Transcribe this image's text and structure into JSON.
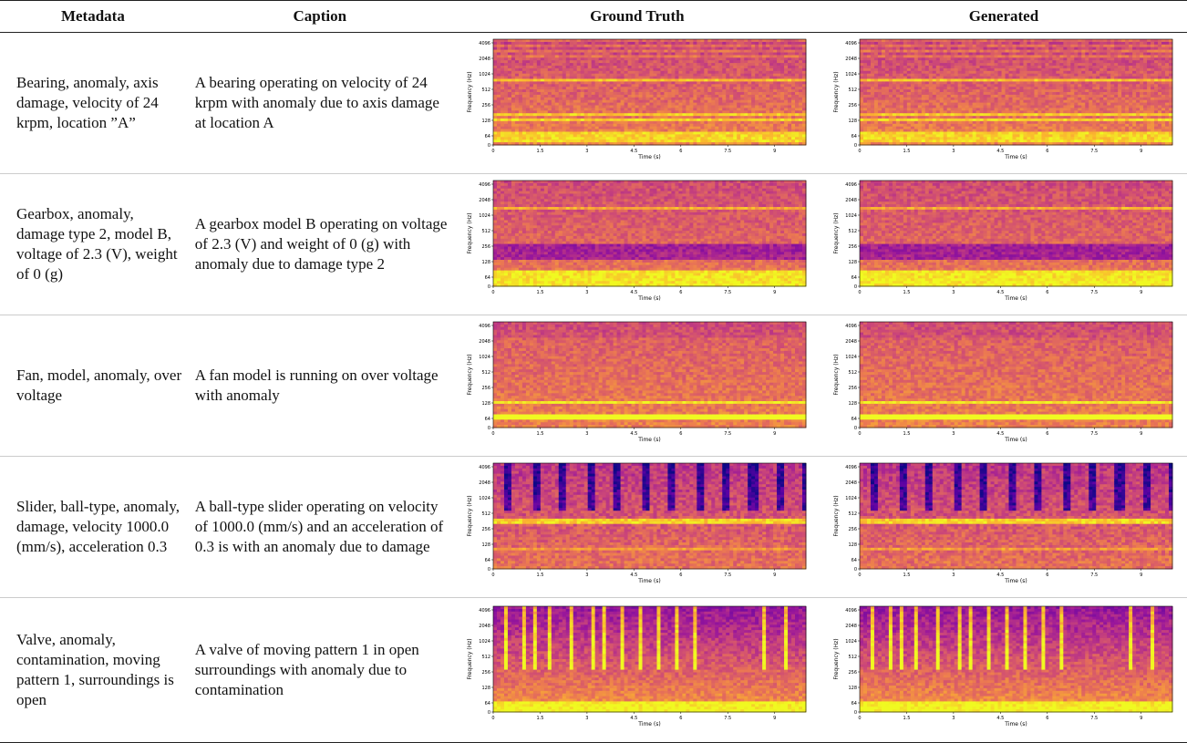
{
  "table": {
    "headers": [
      "Metadata",
      "Caption",
      "Ground Truth",
      "Generated"
    ],
    "rows": [
      {
        "metadata": "Bearing, anomaly, axis damage, velocity of 24 krpm, location ”A”",
        "caption": "A bearing operating on velocity of 24 krpm with anomaly due to axis damage at location A"
      },
      {
        "metadata": "Gearbox, anomaly, damage type 2, model B, voltage of 2.3 (V), weight of 0 (g)",
        "caption": "A gearbox model B operating on voltage of 2.3 (V) and weight of 0 (g) with anomaly due to damage type 2"
      },
      {
        "metadata": "Fan, model, anomaly, over voltage",
        "caption": "A fan model is running on over voltage with anomaly"
      },
      {
        "metadata": "Slider, ball-type, anomaly, damage, velocity 1000.0 (mm/s), acceleration 0.3",
        "caption": "A ball-type slider operating on velocity of 1000.0 (mm/s) and an acceleration of 0.3 is with an anomaly due to damage"
      },
      {
        "metadata": "Valve, anomaly, contamination, moving pattern 1, surroundings is open",
        "caption": "A valve of moving pattern 1 in open surroundings with anomaly due to contamination"
      }
    ]
  },
  "spectrogram_axes": {
    "xlabel": "Time (s)",
    "ylabel": "Frequency (Hz)",
    "x_ticks": [
      "0",
      "1.5",
      "3",
      "4.5",
      "6",
      "7.5",
      "9"
    ],
    "y_ticks": [
      "4096",
      "2048",
      "1024",
      "512",
      "256",
      "128",
      "64",
      "0"
    ]
  },
  "colormap": [
    "#0d0887",
    "#5b02a3",
    "#9a179b",
    "#cb4679",
    "#eb7852",
    "#fbb32f",
    "#f0f921"
  ]
}
